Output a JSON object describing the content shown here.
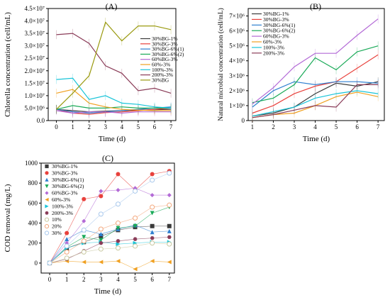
{
  "chart_data": [
    {
      "type": "line",
      "panel_label": "(A)",
      "xlabel": "Time (d)",
      "ylabel": "Chlorella concentration (cell/mL)",
      "x": [
        0,
        1,
        2,
        3,
        4,
        5,
        6,
        7
      ],
      "xlim": [
        -0.5,
        7.3
      ],
      "ylim": [
        0,
        45000000
      ],
      "xticks": [
        "0",
        "1",
        "2",
        "3",
        "4",
        "5",
        "6",
        "7"
      ],
      "yticks": [
        {
          "v": 0,
          "label": "0.0"
        },
        {
          "v": 5000000,
          "label": "5.0×10⁶"
        },
        {
          "v": 10000000,
          "label": "1.0×10⁷"
        },
        {
          "v": 15000000,
          "label": "1.5×10⁷"
        },
        {
          "v": 20000000,
          "label": "2.0×10⁷"
        },
        {
          "v": 25000000,
          "label": "2.5×10⁷"
        },
        {
          "v": 30000000,
          "label": "3.0×10⁷"
        },
        {
          "v": 35000000,
          "label": "3.5×10⁷"
        },
        {
          "v": 40000000,
          "label": "4.0×10⁷"
        },
        {
          "v": 45000000,
          "label": "4.5×10⁷"
        }
      ],
      "legend_position": "right",
      "series": [
        {
          "name": "30%BG-1%",
          "color": "#3a3a3a",
          "values": [
            4500000,
            4000000,
            3500000,
            3800000,
            4000000,
            4200000,
            4400000,
            4500000
          ]
        },
        {
          "name": "30%BG-3%",
          "color": "#e8413c",
          "values": [
            4500000,
            3000000,
            2500000,
            3200000,
            3500000,
            4000000,
            4500000,
            5000000
          ]
        },
        {
          "name": "30%BG-6%(1)",
          "color": "#2e7fd0",
          "values": [
            4500000,
            3500000,
            3000000,
            3500000,
            4000000,
            4500000,
            5000000,
            5500000
          ]
        },
        {
          "name": "30%BG-6%(2)",
          "color": "#1aaa58",
          "values": [
            4500000,
            6000000,
            5000000,
            5000000,
            5500000,
            5000000,
            5000000,
            5000000
          ]
        },
        {
          "name": "60%BG-3%",
          "color": "#b36ad6",
          "values": [
            4000000,
            3000000,
            3500000,
            3500000,
            3000000,
            3500000,
            3500000,
            3500000
          ]
        },
        {
          "name": "60%-3%",
          "color": "#f0a020",
          "values": [
            11000000,
            12500000,
            7000000,
            5500000,
            4500000,
            4200000,
            4000000,
            4000000
          ]
        },
        {
          "name": "100%-3%",
          "color": "#18c4d8",
          "values": [
            16500000,
            17000000,
            8500000,
            10000000,
            7000000,
            6500000,
            5500000,
            5000000
          ]
        },
        {
          "name": "200%-3%",
          "color": "#8a3c58",
          "values": [
            34500000,
            35000000,
            31000000,
            22000000,
            19000000,
            12000000,
            13000000,
            11000000
          ]
        },
        {
          "name": "30%BG",
          "color": "#9a9a10",
          "values": [
            4500000,
            11000000,
            18000000,
            39500000,
            32000000,
            38000000,
            38000000,
            36500000
          ]
        }
      ]
    },
    {
      "type": "line",
      "panel_label": "(B)",
      "xlabel": "Time (d)",
      "ylabel": "Natural microbial concentration (cell/mL)",
      "x": [
        1,
        2,
        3,
        4,
        5,
        6,
        7
      ],
      "xlim": [
        0.8,
        7.3
      ],
      "ylim": [
        0,
        7500000
      ],
      "xticks": [
        "1",
        "2",
        "3",
        "4",
        "5",
        "6",
        "7"
      ],
      "yticks": [
        {
          "v": 0,
          "label": "0"
        },
        {
          "v": 1000000,
          "label": "1×10⁶"
        },
        {
          "v": 2000000,
          "label": "2×10⁶"
        },
        {
          "v": 3000000,
          "label": "3×10⁶"
        },
        {
          "v": 4000000,
          "label": "4×10⁶"
        },
        {
          "v": 5000000,
          "label": "5×10⁶"
        },
        {
          "v": 6000000,
          "label": "6×10⁶"
        },
        {
          "v": 7000000,
          "label": "7×10⁶"
        }
      ],
      "legend_position": "top-left",
      "series": [
        {
          "name": "30%BG-1%",
          "color": "#3a3a3a",
          "values": [
            300000,
            500000,
            900000,
            1800000,
            2500000,
            2300000,
            2600000
          ]
        },
        {
          "name": "30%BG-3%",
          "color": "#e8413c",
          "values": [
            500000,
            1000000,
            1800000,
            2300000,
            2600000,
            3500000,
            4400000
          ]
        },
        {
          "name": "30%BG-6%(1)",
          "color": "#2e7fd0",
          "values": [
            900000,
            2000000,
            2600000,
            2400000,
            2600000,
            2600000,
            2500000
          ]
        },
        {
          "name": "30%BG-6%(2)",
          "color": "#1aaa58",
          "values": [
            1200000,
            1500000,
            2400000,
            4200000,
            3400000,
            4600000,
            5000000
          ]
        },
        {
          "name": "60%BG-3%",
          "color": "#b36ad6",
          "values": [
            1100000,
            2200000,
            3600000,
            4500000,
            4500000,
            5700000,
            6800000
          ]
        },
        {
          "name": "60%-3%",
          "color": "#f0a020",
          "values": [
            200000,
            400000,
            500000,
            1000000,
            1600000,
            1900000,
            1600000
          ]
        },
        {
          "name": "100%-3%",
          "color": "#18c4d8",
          "values": [
            300000,
            600000,
            900000,
            1500000,
            1800000,
            2000000,
            1800000
          ]
        },
        {
          "name": "200%-3%",
          "color": "#8a3c58",
          "values": [
            200000,
            400000,
            700000,
            1000000,
            900000,
            2400000,
            2400000
          ]
        }
      ]
    },
    {
      "type": "scatter",
      "panel_label": "(C)",
      "xlabel": "Time (d)",
      "ylabel": "COD removal (mg/L)",
      "x": [
        0,
        1,
        2,
        3,
        4,
        5,
        6,
        7
      ],
      "xlim": [
        -0.5,
        7.3
      ],
      "ylim": [
        -100,
        1000
      ],
      "xticks": [
        "0",
        "1",
        "2",
        "3",
        "4",
        "5",
        "6",
        "7"
      ],
      "yticks": [
        {
          "v": 0,
          "label": "0"
        },
        {
          "v": 200,
          "label": "200"
        },
        {
          "v": 400,
          "label": "400"
        },
        {
          "v": 600,
          "label": "600"
        },
        {
          "v": 800,
          "label": "800"
        },
        {
          "v": 1000,
          "label": "1000"
        }
      ],
      "legend_position": "top-left",
      "series": [
        {
          "name": "30%BG-1%",
          "color": "#3a3a3a",
          "marker": "square",
          "values": [
            0,
            150,
            210,
            270,
            330,
            360,
            370,
            370
          ]
        },
        {
          "name": "30%BG-3%",
          "color": "#e8413c",
          "marker": "circle",
          "values": [
            0,
            300,
            640,
            670,
            890,
            730,
            890,
            920
          ]
        },
        {
          "name": "30%BG-6%(1)",
          "color": "#2e7fd0",
          "marker": "triangle-up",
          "values": [
            0,
            240,
            330,
            290,
            340,
            380,
            310,
            320
          ]
        },
        {
          "name": "30%BG-6%(2)",
          "color": "#1aaa58",
          "marker": "triangle-down",
          "values": [
            0,
            160,
            260,
            230,
            350,
            370,
            500,
            560
          ]
        },
        {
          "name": "60%BG-3%",
          "color": "#b36ad6",
          "marker": "diamond",
          "values": [
            0,
            200,
            420,
            720,
            730,
            750,
            680,
            680
          ]
        },
        {
          "name": "60%-3%",
          "color": "#f0a020",
          "marker": "triangle-left",
          "values": [
            0,
            20,
            10,
            10,
            20,
            -60,
            20,
            10
          ]
        },
        {
          "name": "100%-3%",
          "color": "#18c4d8",
          "marker": "triangle-right",
          "values": [
            0,
            150,
            200,
            210,
            190,
            200,
            210,
            210
          ]
        },
        {
          "name": "200%-3%",
          "color": "#8a3c58",
          "marker": "hexagon",
          "values": [
            0,
            40,
            120,
            200,
            220,
            240,
            250,
            260
          ]
        },
        {
          "name": "10%",
          "color": "#c8c8a0",
          "marker": "open-circle",
          "values": [
            0,
            50,
            110,
            140,
            150,
            170,
            200,
            190
          ]
        },
        {
          "name": "20%",
          "color": "#f3a77c",
          "marker": "open-circle",
          "values": [
            0,
            110,
            220,
            340,
            400,
            450,
            560,
            580
          ]
        },
        {
          "name": "30%",
          "color": "#a8c8ec",
          "marker": "open-circle",
          "values": [
            0,
            170,
            330,
            490,
            590,
            720,
            830,
            900
          ]
        }
      ]
    }
  ]
}
